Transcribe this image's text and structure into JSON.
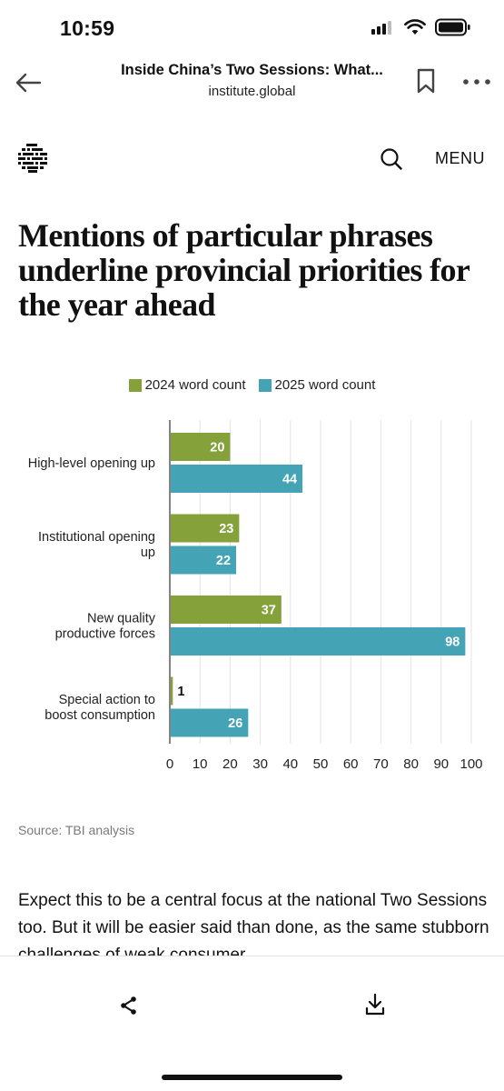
{
  "status_bar": {
    "time": "10:59"
  },
  "browser": {
    "title": "Inside China’s Two Sessions: What...",
    "domain": "institute.global"
  },
  "site": {
    "menu_label": "MENU"
  },
  "article": {
    "heading": "Mentions of particular phrases underline provincial priorities for the year ahead",
    "source": "Source: TBI analysis",
    "body_text": "Expect this to be a central focus at the national Two Sessions too. But it will be easier said than done, as the same stubborn challenges of weak consumer"
  },
  "chart_data": {
    "type": "bar",
    "orientation": "horizontal",
    "categories": [
      [
        "High-level opening up"
      ],
      [
        "Institutional opening",
        "up"
      ],
      [
        "New quality",
        "productive forces"
      ],
      [
        "Special action to",
        "boost consumption"
      ]
    ],
    "series": [
      {
        "name": "2024 word count",
        "color": "#84a13a",
        "values": [
          20,
          23,
          37,
          1
        ]
      },
      {
        "name": "2025 word count",
        "color": "#44a3b5",
        "values": [
          44,
          22,
          98,
          26
        ]
      }
    ],
    "xlim": [
      0,
      100
    ],
    "xticks": [
      0,
      10,
      20,
      30,
      40,
      50,
      60,
      70,
      80,
      90,
      100
    ],
    "grid": true,
    "legend_position": "top-center",
    "data_labels": true
  }
}
